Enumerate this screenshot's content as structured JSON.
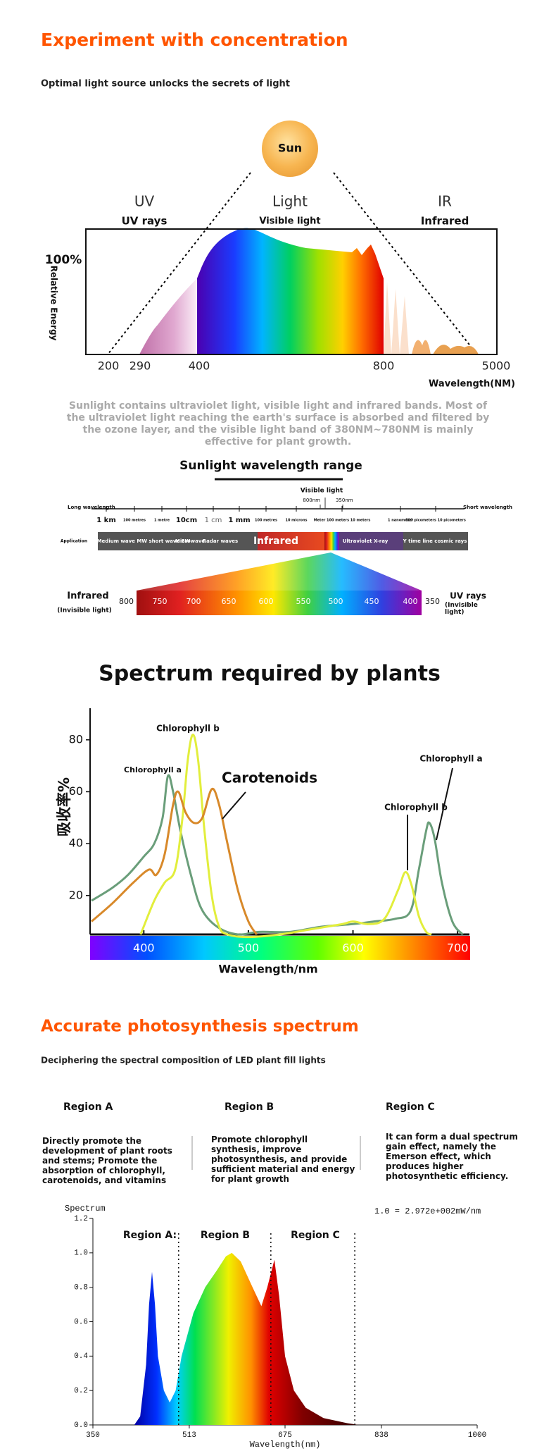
{
  "header": {
    "title": "Experiment with concentration",
    "subtitle": "Optimal light source unlocks the secrets of light"
  },
  "sun_diagram": {
    "sun": "Sun",
    "bands": [
      "UV",
      "Light",
      "IR"
    ],
    "band_names": [
      "UV rays",
      "Visible light",
      "Infrared"
    ],
    "max_label": "100%",
    "y_label": "Relative Energy",
    "x_labels": [
      200,
      290,
      400,
      800,
      5000
    ],
    "x_title": "Wavelength(NM)"
  },
  "description": "Sunlight contains ultraviolet light, visible light and infrared bands. Most of the ultraviolet light reaching the earth's surface is absorbed and filtered by the ozone layer, and the visible light band of 380NM~780NM is mainly effective for plant growth.",
  "wavelength_range": {
    "title": "Sunlight wavelength range",
    "visible_label": "Visible light",
    "visible_ends": [
      "800nm",
      "350nm"
    ],
    "long_label": "Long wavelength",
    "short_label": "Short wavelength",
    "scale_labels": [
      "1 km",
      "100 metres",
      "1 metre",
      "10cm",
      "1 cm",
      "1 mm",
      "100 metres",
      "10 microns",
      "Meter 100 meters 10 meters",
      "1 nanometer",
      "100 picometers 10 picometers"
    ],
    "application_label": "Application",
    "applications": [
      "Medium wave MW short wave SW",
      "Microwave",
      "Radar waves",
      "Infrared",
      "Ultraviolet X-ray",
      "Y time line cosmic rays"
    ],
    "spectrum_ticks": [
      750,
      700,
      650,
      600,
      550,
      500,
      450,
      400
    ],
    "ends": [
      800,
      350
    ],
    "left_label": "Infrared",
    "left_note": "(Invisible light)",
    "right_label": "UV rays",
    "right_note": "(Invisible light)"
  },
  "plants_title": "Spectrum required by plants",
  "photosynthesis": {
    "title": "Accurate photosynthesis spectrum",
    "subtitle": "Deciphering the spectral composition of LED plant fill lights",
    "regions": [
      {
        "name": "Region A",
        "text": "Directly promote the development of plant roots and stems; Promote the absorption of chlorophyll, carotenoids, and vitamins"
      },
      {
        "name": "Region B",
        "text": "Promote chlorophyll synthesis, improve photosynthesis, and provide sufficient material and energy for plant growth"
      },
      {
        "name": "Region C",
        "text": "It can form a dual spectrum gain effect, namely the Emerson effect, which produces higher photosynthetic efficiency."
      }
    ]
  },
  "chart_data": [
    {
      "type": "line",
      "x_label": "Wavelength/nm",
      "y_label": "吸收率%",
      "xlim": [
        350,
        710
      ],
      "ylim": [
        5,
        90
      ],
      "xticks": [
        400,
        500,
        600,
        700
      ],
      "yticks": [
        20,
        40,
        60,
        80
      ],
      "series": [
        {
          "name": "Chlorophyll a",
          "color": "#6a9e7a",
          "x": [
            350,
            370,
            385,
            400,
            410,
            418,
            423,
            428,
            435,
            445,
            455,
            470,
            490,
            510,
            540,
            570,
            600,
            620,
            640,
            655,
            663,
            670,
            673,
            678,
            685,
            695,
            705
          ],
          "values": [
            18,
            23,
            28,
            35,
            40,
            50,
            66,
            60,
            45,
            28,
            15,
            8,
            5,
            6,
            6,
            8,
            9,
            10,
            11,
            14,
            30,
            45,
            48,
            42,
            25,
            10,
            5
          ]
        },
        {
          "name": "Chlorophyll b",
          "color": "#e2ee3c",
          "x": [
            397,
            410,
            420,
            430,
            437,
            442,
            447,
            452,
            458,
            465,
            472,
            480,
            500,
            530,
            560,
            590,
            600,
            615,
            630,
            643,
            650,
            656,
            663,
            670,
            675
          ],
          "values": [
            5,
            18,
            25,
            30,
            50,
            72,
            82,
            72,
            45,
            20,
            8,
            5,
            4,
            5,
            7,
            9,
            10,
            9,
            11,
            22,
            29,
            24,
            12,
            6,
            5
          ]
        },
        {
          "name": "Carotenoids",
          "color": "#d8892a",
          "x": [
            350,
            370,
            390,
            405,
            412,
            420,
            428,
            433,
            440,
            448,
            456,
            465,
            472,
            480,
            490,
            500,
            508
          ],
          "values": [
            10,
            17,
            25,
            30,
            28,
            36,
            55,
            60,
            52,
            48,
            50,
            61,
            55,
            40,
            22,
            10,
            5
          ]
        }
      ]
    },
    {
      "type": "area",
      "x_label": "Wavelength(nm)",
      "y_label": "Spectrum",
      "note": "1.0 = 2.972e+002mW/nm",
      "xlim": [
        350,
        1000
      ],
      "ylim": [
        0,
        1.2
      ],
      "xticks": [
        350,
        513,
        675,
        838,
        1000
      ],
      "yticks": [
        {
          "value": 0,
          "label": "0.0"
        },
        0.2,
        0.4,
        0.6,
        0.8,
        {
          "value": 1,
          "label": "1.0"
        },
        1.2
      ],
      "x": [
        420,
        430,
        440,
        445,
        450,
        455,
        460,
        470,
        480,
        490,
        500,
        520,
        540,
        560,
        575,
        585,
        600,
        620,
        635,
        645,
        657,
        665,
        675,
        690,
        710,
        740,
        780,
        800
      ],
      "values": [
        0,
        0.05,
        0.35,
        0.7,
        0.89,
        0.7,
        0.4,
        0.2,
        0.13,
        0.2,
        0.4,
        0.65,
        0.8,
        0.9,
        0.98,
        1.0,
        0.95,
        0.8,
        0.69,
        0.8,
        0.96,
        0.75,
        0.4,
        0.2,
        0.1,
        0.04,
        0.01,
        0
      ],
      "region_bounds": [
        495,
        651,
        793
      ],
      "region_labels": [
        "Region A:",
        "Region B",
        "Region C"
      ]
    }
  ]
}
